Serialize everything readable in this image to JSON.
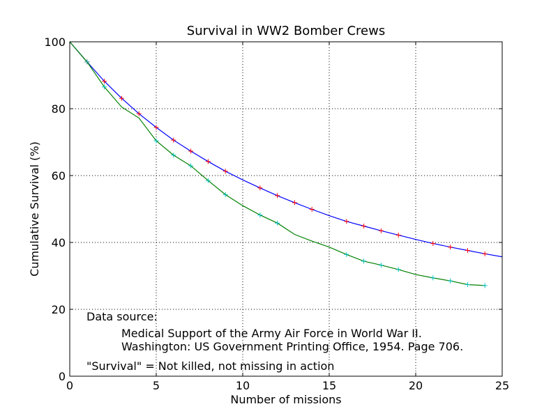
{
  "chart_data": {
    "type": "line",
    "title": "Survival in WW2 Bomber Crews",
    "xlabel": "Number of missions",
    "ylabel": "Cumulative Survival (%)",
    "xlim": [
      0,
      25
    ],
    "ylim": [
      0,
      100
    ],
    "xticks": [
      0,
      5,
      10,
      15,
      20,
      25
    ],
    "yticks": [
      0,
      20,
      40,
      60,
      80,
      100
    ],
    "grid": true,
    "series": [
      {
        "color": "#0000ff",
        "marker_color": "#ff0000",
        "x": [
          0,
          1,
          2,
          3,
          4,
          5,
          6,
          7,
          8,
          9,
          10,
          11,
          12,
          13,
          14,
          15,
          16,
          17,
          18,
          19,
          20,
          21,
          22,
          23,
          24,
          25
        ],
        "y": [
          100,
          94.0,
          88.2,
          83.1,
          78.5,
          74.4,
          70.6,
          67.3,
          64.2,
          61.3,
          58.7,
          56.3,
          54.0,
          51.9,
          49.9,
          48.0,
          46.3,
          44.9,
          43.5,
          42.2,
          40.9,
          39.7,
          38.6,
          37.6,
          36.6,
          35.7
        ],
        "marker_x": [
          1,
          2,
          3,
          4,
          5,
          6,
          7,
          8,
          9,
          11,
          12,
          13,
          14,
          16,
          17,
          18,
          19,
          21,
          22,
          23,
          24
        ]
      },
      {
        "color": "#008000",
        "marker_color": "#00bfbf",
        "x": [
          0,
          1,
          2,
          3,
          4,
          5,
          6,
          7,
          8,
          9,
          10,
          11,
          12,
          13,
          14,
          15,
          16,
          17,
          18,
          19,
          20,
          21,
          22,
          23,
          24
        ],
        "y": [
          100,
          94.0,
          86.5,
          80.5,
          77.2,
          70.4,
          66.1,
          62.9,
          58.5,
          54.3,
          51.0,
          48.2,
          45.8,
          42.4,
          40.4,
          38.6,
          36.4,
          34.4,
          33.2,
          31.9,
          30.4,
          29.4,
          28.5,
          27.4,
          27.1
        ],
        "marker_x": [
          1,
          2,
          5,
          6,
          7,
          8,
          9,
          11,
          12,
          16,
          17,
          18,
          19,
          21,
          22,
          23,
          24
        ]
      }
    ],
    "annotation": {
      "heading": "Data source:",
      "line1": "Medical Support of the Army Air Force in World War II.",
      "line2": "Washington: US Government Printing Office, 1954. Page 706.",
      "note": "\"Survival\" = Not killed, not missing in action"
    }
  }
}
